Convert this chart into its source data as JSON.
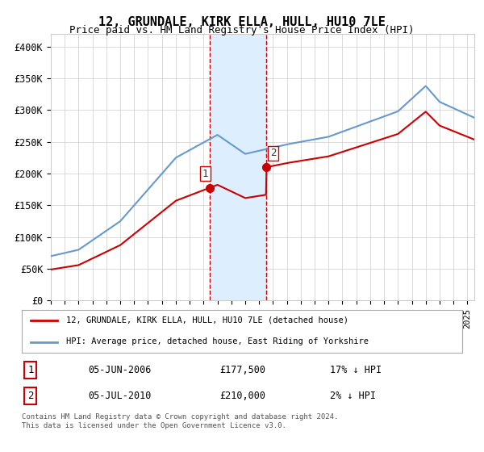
{
  "title": "12, GRUNDALE, KIRK ELLA, HULL, HU10 7LE",
  "subtitle": "Price paid vs. HM Land Registry's House Price Index (HPI)",
  "ylabel_ticks": [
    "£0",
    "£50K",
    "£100K",
    "£150K",
    "£200K",
    "£250K",
    "£300K",
    "£350K",
    "£400K"
  ],
  "ytick_values": [
    0,
    50000,
    100000,
    150000,
    200000,
    250000,
    300000,
    350000,
    400000
  ],
  "ylim": [
    0,
    420000
  ],
  "xlim_start": 1995.0,
  "xlim_end": 2025.5,
  "sale1_date": 2006.42,
  "sale1_price": 177500,
  "sale2_date": 2010.5,
  "sale2_price": 210000,
  "highlight_start": 2006.42,
  "highlight_end": 2010.5,
  "property_line_color": "#cc0000",
  "hpi_line_color": "#6699cc",
  "highlight_color": "#ddeeff",
  "grid_color": "#cccccc",
  "background_color": "#ffffff",
  "legend_property": "12, GRUNDALE, KIRK ELLA, HULL, HU10 7LE (detached house)",
  "legend_hpi": "HPI: Average price, detached house, East Riding of Yorkshire",
  "table_row1": [
    "1",
    "05-JUN-2006",
    "£177,500",
    "17% ↓ HPI"
  ],
  "table_row2": [
    "2",
    "05-JUL-2010",
    "£210,000",
    "2% ↓ HPI"
  ],
  "footer": "Contains HM Land Registry data © Crown copyright and database right 2024.\nThis data is licensed under the Open Government Licence v3.0.",
  "marker1_label": "1",
  "marker2_label": "2"
}
